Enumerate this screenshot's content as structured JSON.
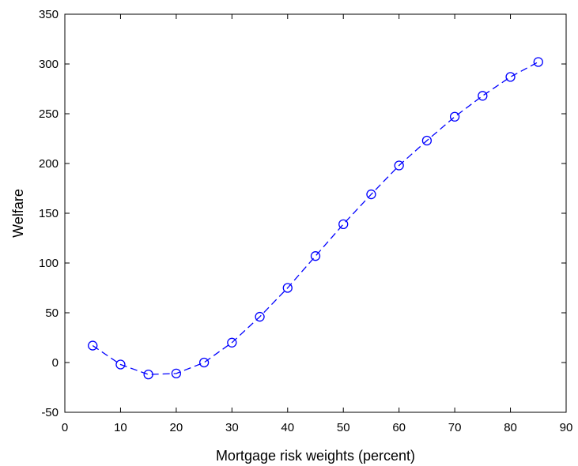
{
  "chart_data": {
    "type": "line",
    "title": "",
    "xlabel": "Mortgage risk weights (percent)",
    "ylabel": "Welfare",
    "xlim": [
      0,
      90
    ],
    "ylim": [
      -50,
      350
    ],
    "xticks": [
      0,
      10,
      20,
      30,
      40,
      50,
      60,
      70,
      80,
      90
    ],
    "yticks": [
      -50,
      0,
      50,
      100,
      150,
      200,
      250,
      300,
      350
    ],
    "grid": false,
    "legend": "none",
    "series": [
      {
        "line_style": "dashed",
        "marker": "open-circle",
        "color": "#0000ff",
        "x": [
          5,
          10,
          15,
          20,
          25,
          30,
          35,
          40,
          45,
          50,
          55,
          60,
          65,
          70,
          75,
          80,
          85
        ],
        "y": [
          17,
          -2,
          -12,
          -11,
          0,
          20,
          46,
          75,
          107,
          139,
          169,
          198,
          223,
          247,
          268,
          287,
          302
        ]
      }
    ]
  }
}
